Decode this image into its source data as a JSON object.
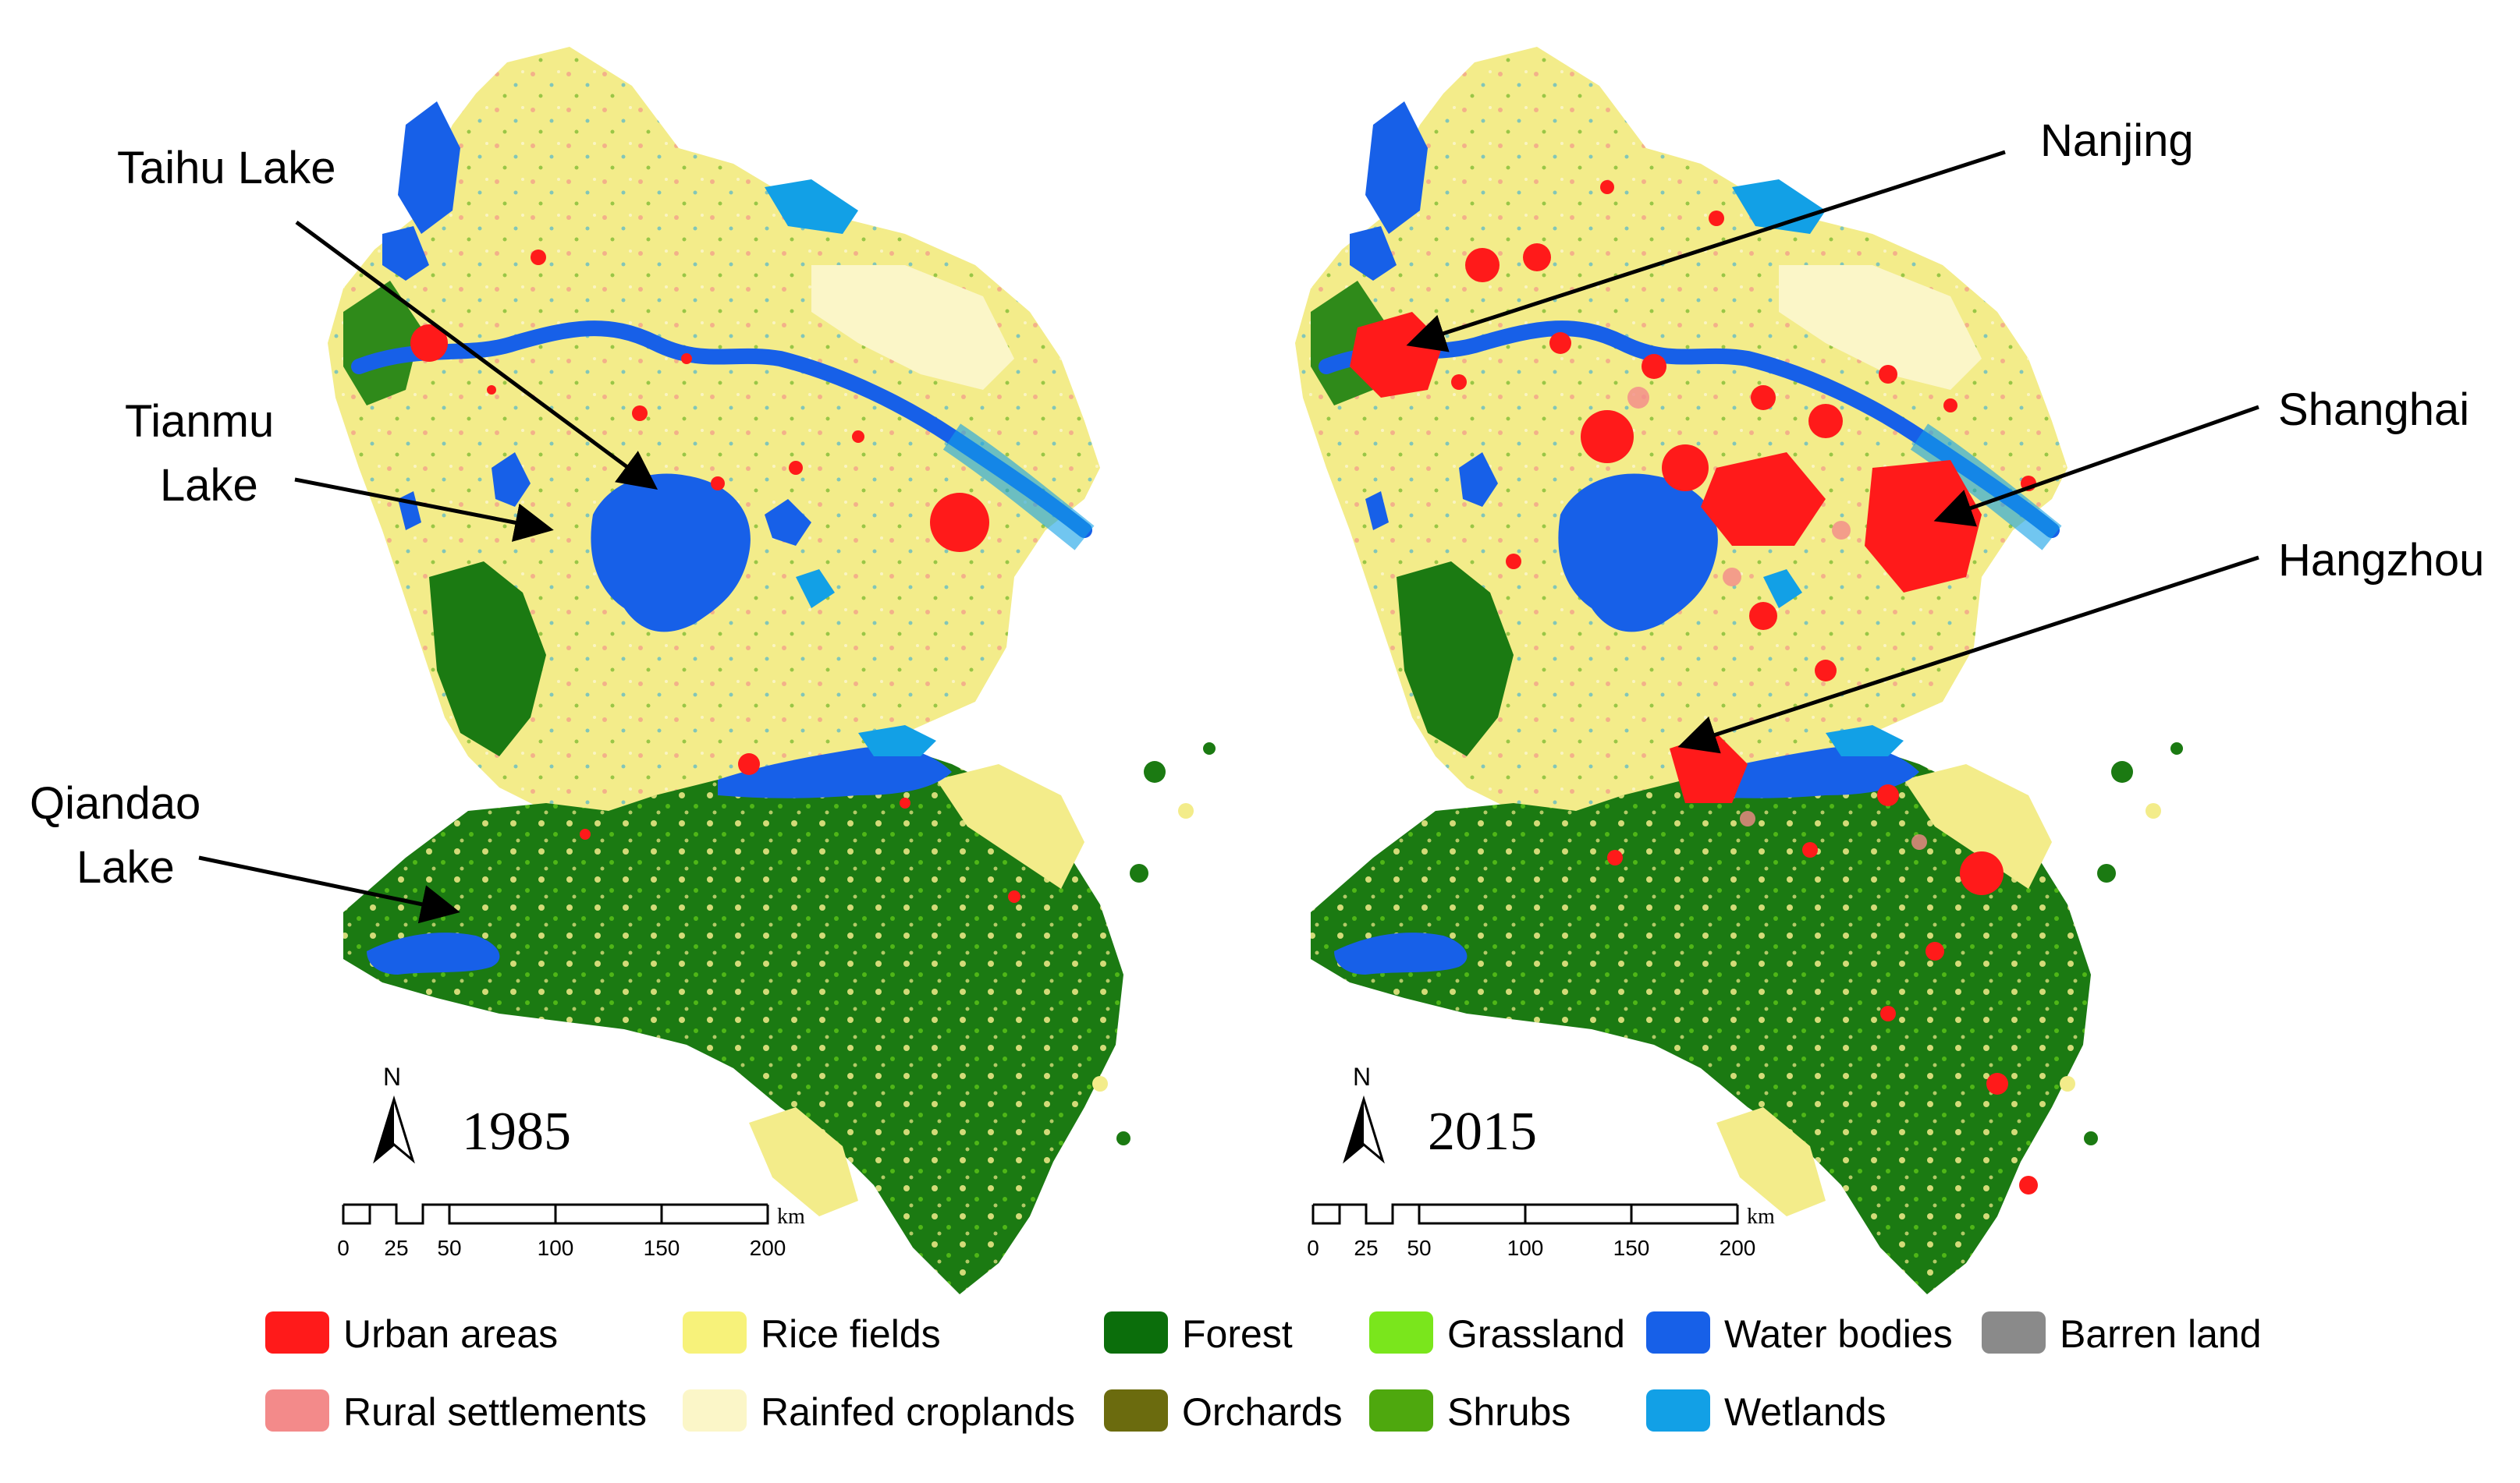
{
  "maps": [
    {
      "year": "1985",
      "annotations": [
        "Taihu Lake",
        "Tianmu Lake",
        "Qiandao Lake"
      ]
    },
    {
      "year": "2015",
      "annotations": [
        "Nanjing",
        "Shanghai",
        "Hangzhou"
      ]
    }
  ],
  "labels": {
    "taihu": "Taihu Lake",
    "tianmu_1": "Tianmu",
    "tianmu_2": "Lake",
    "qiandao_1": "Qiandao",
    "qiandao_2": "Lake",
    "nanjing": "Nanjing",
    "shanghai": "Shanghai",
    "hangzhou": "Hangzhou",
    "year_left": "1985",
    "year_right": "2015"
  },
  "north_arrow": {
    "label": "N"
  },
  "scale_bar": {
    "unit": "km",
    "ticks": [
      "0",
      "25",
      "50",
      "100",
      "150",
      "200"
    ]
  },
  "legend": {
    "row1": [
      {
        "label": "Urban areas",
        "color": "#ff1a1a"
      },
      {
        "label": "Rice fields",
        "color": "#f7f27a"
      },
      {
        "label": "Forest",
        "color": "#0b6e0b"
      },
      {
        "label": "Grassland",
        "color": "#7ae61c"
      },
      {
        "label": "Water bodies",
        "color": "#1760e8"
      },
      {
        "label": "Barren land",
        "color": "#8a8a8a"
      }
    ],
    "row2": [
      {
        "label": "Rural settlements",
        "color": "#f38a8a"
      },
      {
        "label": "Rainfed croplands",
        "color": "#fbf6c8"
      },
      {
        "label": "Orchards",
        "color": "#6b6b0e"
      },
      {
        "label": "Shrubs",
        "color": "#4ea80e"
      },
      {
        "label": "Wetlands",
        "color": "#12a0e6"
      }
    ]
  },
  "colors": {
    "rice": "#f3ec8a",
    "rainfed": "#fbf6c8",
    "forest": "#1b7a12",
    "water": "#1760e8",
    "wetland": "#12a0e6",
    "urban": "#ff1a1a"
  }
}
